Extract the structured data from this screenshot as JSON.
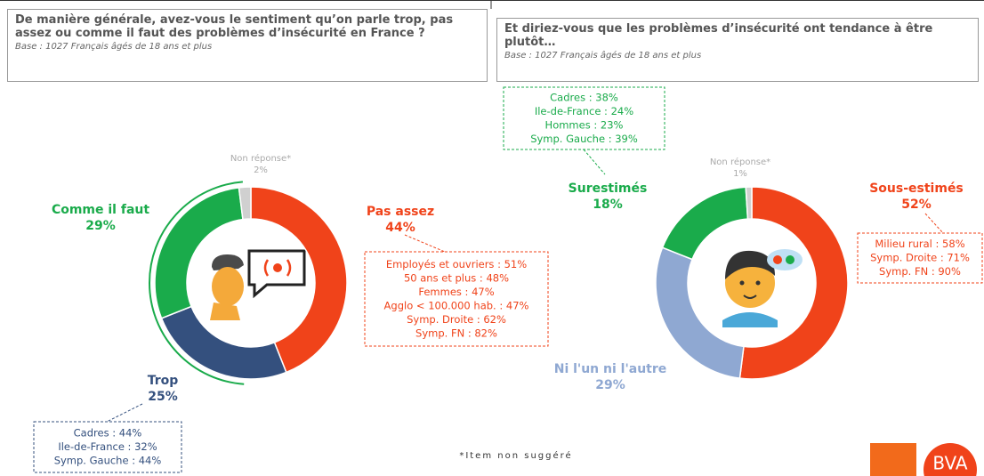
{
  "chart_data": [
    {
      "type": "pie",
      "title": "De manière générale, avez-vous le sentiment qu’on parle trop, pas assez ou comme il faut des problèmes d’insécurité en France ?",
      "subtitle": "Base : 1027 Français âgés de 18 ans et plus",
      "categories": [
        "Pas assez",
        "Trop",
        "Comme il faut",
        "Non réponse*"
      ],
      "values": [
        44,
        25,
        29,
        2
      ],
      "value_labels": [
        "44%",
        "25%",
        "29%",
        "2%"
      ],
      "colors": [
        "#f0431a",
        "#34507e",
        "#1aab4b",
        "#d0d0d0"
      ],
      "callouts": [
        [
          "Employés et ouvriers : 51%",
          "50 ans et plus : 48%",
          "Femmes : 47%",
          "Agglo < 100.000 hab. : 47%",
          "Symp. Droite : 62%",
          "Symp. FN : 82%"
        ],
        [
          "Cadres : 44%",
          "Ile-de-France : 32%",
          "Symp. Gauche : 44%"
        ]
      ]
    },
    {
      "type": "pie",
      "title": "Et diriez-vous que les problèmes d’insécurité ont tendance à être plutôt…",
      "subtitle": "Base : 1027 Français âgés de 18 ans et plus",
      "categories": [
        "Sous-estimés",
        "Ni l'un ni l'autre",
        "Surestimés",
        "Non réponse*"
      ],
      "values": [
        52,
        29,
        18,
        1
      ],
      "value_labels": [
        "52%",
        "29%",
        "18%",
        "1%"
      ],
      "colors": [
        "#f0431a",
        "#8fa8d2",
        "#1aab4b",
        "#d0d0d0"
      ],
      "callouts": [
        [
          "Cadres : 38%",
          "Ile-de-France : 24%",
          "Hommes : 23%",
          "Symp. Gauche : 39%"
        ],
        [
          "Milieu rural : 58%",
          "Symp. Droite : 71%",
          "Symp. FN : 90%"
        ]
      ]
    }
  ],
  "footnote": "*Item non suggéré",
  "logo": "BVA"
}
